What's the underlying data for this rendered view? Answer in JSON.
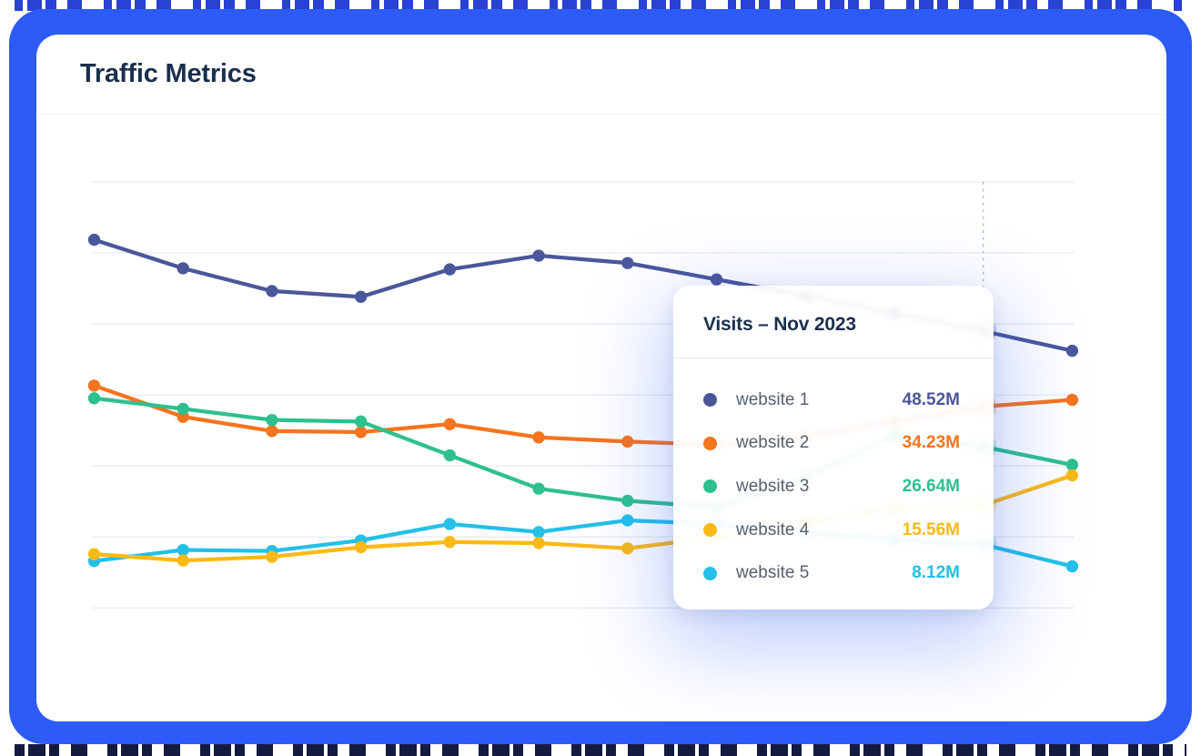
{
  "header": {
    "title": "Traffic Metrics"
  },
  "tooltip": {
    "title": "Visits – Nov 2023",
    "rows": [
      {
        "label": "website 1",
        "value": "48.52M"
      },
      {
        "label": "website 2",
        "value": "34.23M"
      },
      {
        "label": "website 3",
        "value": "26.64M"
      },
      {
        "label": "website 4",
        "value": "15.56M"
      },
      {
        "label": "website 5",
        "value": "8.12M"
      }
    ]
  },
  "chart_data": {
    "type": "line",
    "title": "Traffic Metrics",
    "x_axis_labels_visible": false,
    "y_axis_labels_visible": false,
    "grid": "horizontal gridlines only",
    "legend": "none (hover tooltip lists series)",
    "points_per_series": 12,
    "unit": "M (millions of visits)",
    "values_estimated": true,
    "exact_values_at_index": 10,
    "hovered_point": {
      "index": 10,
      "label": "Visits – Nov 2023"
    },
    "series": [
      {
        "name": "website 1",
        "color": "#4A579B",
        "values": [
          65.8,
          60.4,
          56.1,
          55.0,
          60.2,
          62.8,
          61.4,
          58.3,
          55.2,
          51.9,
          48.52,
          44.8
        ]
      },
      {
        "name": "website 2",
        "color": "#F5741E",
        "values": [
          38.2,
          32.3,
          29.6,
          29.4,
          30.9,
          28.4,
          27.6,
          27.0,
          28.5,
          31.4,
          34.23,
          35.5
        ]
      },
      {
        "name": "website 3",
        "color": "#2EC08F",
        "values": [
          35.8,
          33.8,
          31.7,
          31.4,
          25.0,
          18.7,
          16.4,
          15.2,
          20.8,
          28.8,
          26.64,
          23.2
        ]
      },
      {
        "name": "website 4",
        "color": "#FBB917",
        "values": [
          6.3,
          5.1,
          5.8,
          7.6,
          8.6,
          8.4,
          7.4,
          9.5,
          12.2,
          15.0,
          15.56,
          21.2
        ]
      },
      {
        "name": "website 5",
        "color": "#24C0E8",
        "values": [
          5.0,
          7.1,
          6.9,
          8.9,
          12.0,
          10.5,
          12.7,
          12.0,
          10.5,
          9.0,
          8.12,
          4.0
        ]
      }
    ],
    "colors": {
      "frame_blue": "#2D5BF8",
      "gridline": "#E9EDF2",
      "crosshair_dashed": "#AEBEDA",
      "title_text": "#1A2F4E",
      "tooltip_label_text": "#55606E"
    }
  }
}
